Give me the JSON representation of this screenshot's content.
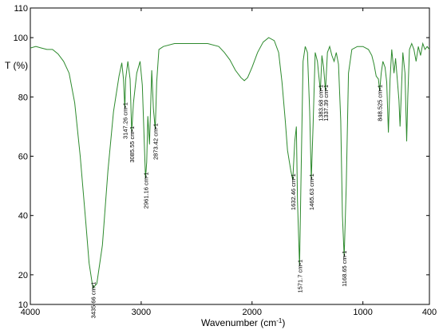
{
  "chart_data": {
    "type": "line",
    "title": "",
    "xlabel": "Wavenumber (cm",
    "xlabel_sup": "-1",
    "xlabel_close": ")",
    "ylabel": "T (%)",
    "xlim": [
      4000,
      400
    ],
    "ylim": [
      10,
      110
    ],
    "x_reversed": true,
    "grid": false,
    "x_ticks": [
      "4000",
      "3000",
      "2000",
      "1000",
      "400"
    ],
    "y_ticks": [
      "10",
      "20",
      "40",
      "60",
      "80",
      "100",
      "110"
    ],
    "line_color": "#2d8a2d",
    "series": [
      {
        "points": [
          [
            4000,
            96.5
          ],
          [
            3950,
            97.0
          ],
          [
            3900,
            96.5
          ],
          [
            3850,
            96.0
          ],
          [
            3800,
            96.0
          ],
          [
            3750,
            94.5
          ],
          [
            3700,
            92.0
          ],
          [
            3650,
            88.0
          ],
          [
            3600,
            78.0
          ],
          [
            3550,
            60.0
          ],
          [
            3500,
            38.0
          ],
          [
            3470,
            24.0
          ],
          [
            3435.66,
            15.5
          ],
          [
            3400,
            17.0
          ],
          [
            3350,
            30.0
          ],
          [
            3300,
            55.0
          ],
          [
            3250,
            75.0
          ],
          [
            3200,
            87.0
          ],
          [
            3175,
            91.5
          ],
          [
            3160,
            86.0
          ],
          [
            3147.26,
            76.0
          ],
          [
            3140,
            86.0
          ],
          [
            3120,
            92.0
          ],
          [
            3100,
            86.0
          ],
          [
            3085.55,
            68.0
          ],
          [
            3070,
            78.0
          ],
          [
            3040,
            88.0
          ],
          [
            3010,
            92.0
          ],
          [
            2990,
            84.0
          ],
          [
            2961.16,
            52.5
          ],
          [
            2950,
            58.0
          ],
          [
            2940,
            73.5
          ],
          [
            2925,
            64.0
          ],
          [
            2905,
            89.0
          ],
          [
            2890,
            76.0
          ],
          [
            2873.42,
            69.0
          ],
          [
            2860,
            85.0
          ],
          [
            2840,
            96.0
          ],
          [
            2800,
            97.0
          ],
          [
            2700,
            98.0
          ],
          [
            2600,
            98.0
          ],
          [
            2500,
            98.0
          ],
          [
            2400,
            98.0
          ],
          [
            2300,
            97.0
          ],
          [
            2250,
            95.0
          ],
          [
            2200,
            92.5
          ],
          [
            2150,
            89.0
          ],
          [
            2100,
            86.5
          ],
          [
            2070,
            85.5
          ],
          [
            2040,
            86.5
          ],
          [
            2000,
            90.0
          ],
          [
            1950,
            95.0
          ],
          [
            1900,
            98.5
          ],
          [
            1850,
            100.0
          ],
          [
            1800,
            99.0
          ],
          [
            1760,
            95.0
          ],
          [
            1730,
            85.0
          ],
          [
            1700,
            72.0
          ],
          [
            1680,
            62.0
          ],
          [
            1650,
            55.0
          ],
          [
            1632.46,
            52.0
          ],
          [
            1615,
            65.0
          ],
          [
            1600,
            70.0
          ],
          [
            1590,
            45.0
          ],
          [
            1571.7,
            23.0
          ],
          [
            1555,
            60.0
          ],
          [
            1540,
            92.0
          ],
          [
            1520,
            97.0
          ],
          [
            1500,
            95.0
          ],
          [
            1480,
            75.0
          ],
          [
            1465.63,
            52.0
          ],
          [
            1450,
            70.0
          ],
          [
            1430,
            95.0
          ],
          [
            1410,
            92.0
          ],
          [
            1400,
            88.0
          ],
          [
            1383.68,
            82.0
          ],
          [
            1370,
            94.0
          ],
          [
            1355,
            90.0
          ],
          [
            1337.39,
            82.0
          ],
          [
            1320,
            95.0
          ],
          [
            1300,
            97.0
          ],
          [
            1280,
            94.0
          ],
          [
            1260,
            92.0
          ],
          [
            1240,
            95.0
          ],
          [
            1220,
            91.0
          ],
          [
            1200,
            72.0
          ],
          [
            1185,
            40.0
          ],
          [
            1168.65,
            26.0
          ],
          [
            1150,
            50.0
          ],
          [
            1130,
            88.0
          ],
          [
            1100,
            96.0
          ],
          [
            1050,
            97.0
          ],
          [
            1000,
            97.0
          ],
          [
            950,
            96.0
          ],
          [
            920,
            94.0
          ],
          [
            900,
            91.0
          ],
          [
            880,
            87.0
          ],
          [
            860,
            86.0
          ],
          [
            848.525,
            82.0
          ],
          [
            835,
            88.0
          ],
          [
            820,
            92.0
          ],
          [
            800,
            90.0
          ],
          [
            785,
            85.0
          ],
          [
            770,
            68.0
          ],
          [
            755,
            86.0
          ],
          [
            740,
            96.0
          ],
          [
            720,
            88.0
          ],
          [
            705,
            93.0
          ],
          [
            690,
            86.0
          ],
          [
            675,
            79.0
          ],
          [
            665,
            70.0
          ],
          [
            655,
            80.0
          ],
          [
            640,
            95.0
          ],
          [
            620,
            88.0
          ],
          [
            605,
            65.0
          ],
          [
            595,
            80.0
          ],
          [
            580,
            96.0
          ],
          [
            560,
            98.0
          ],
          [
            540,
            96.0
          ],
          [
            520,
            92.0
          ],
          [
            500,
            97.0
          ],
          [
            480,
            94.0
          ],
          [
            460,
            98.0
          ],
          [
            440,
            96.0
          ],
          [
            420,
            97.0
          ],
          [
            400,
            96.0
          ]
        ]
      }
    ],
    "peak_labels": [
      {
        "x": 3435.66,
        "y": 15.5,
        "text": "3435.66 cm-1"
      },
      {
        "x": 3147.26,
        "y": 76.0,
        "text": "3147.26 cm-1"
      },
      {
        "x": 3085.55,
        "y": 68.0,
        "text": "3085.55 cm-1"
      },
      {
        "x": 2961.16,
        "y": 52.5,
        "text": "2961.16 cm-1"
      },
      {
        "x": 2873.42,
        "y": 69.0,
        "text": "2873.42 cm-1"
      },
      {
        "x": 1632.46,
        "y": 52.0,
        "text": "1632.46 cm-1"
      },
      {
        "x": 1571.7,
        "y": 23.0,
        "text": "1571.7 cm-1"
      },
      {
        "x": 1465.63,
        "y": 52.0,
        "text": "1465.63 cm-1"
      },
      {
        "x": 1383.68,
        "y": 82.0,
        "text": "1383.68 cm-1"
      },
      {
        "x": 1337.39,
        "y": 82.0,
        "text": "1337.39 cm-1"
      },
      {
        "x": 1168.65,
        "y": 26.0,
        "text": "1168.65 cm-1"
      },
      {
        "x": 848.525,
        "y": 82.0,
        "text": "848.525 cm-1"
      }
    ]
  }
}
